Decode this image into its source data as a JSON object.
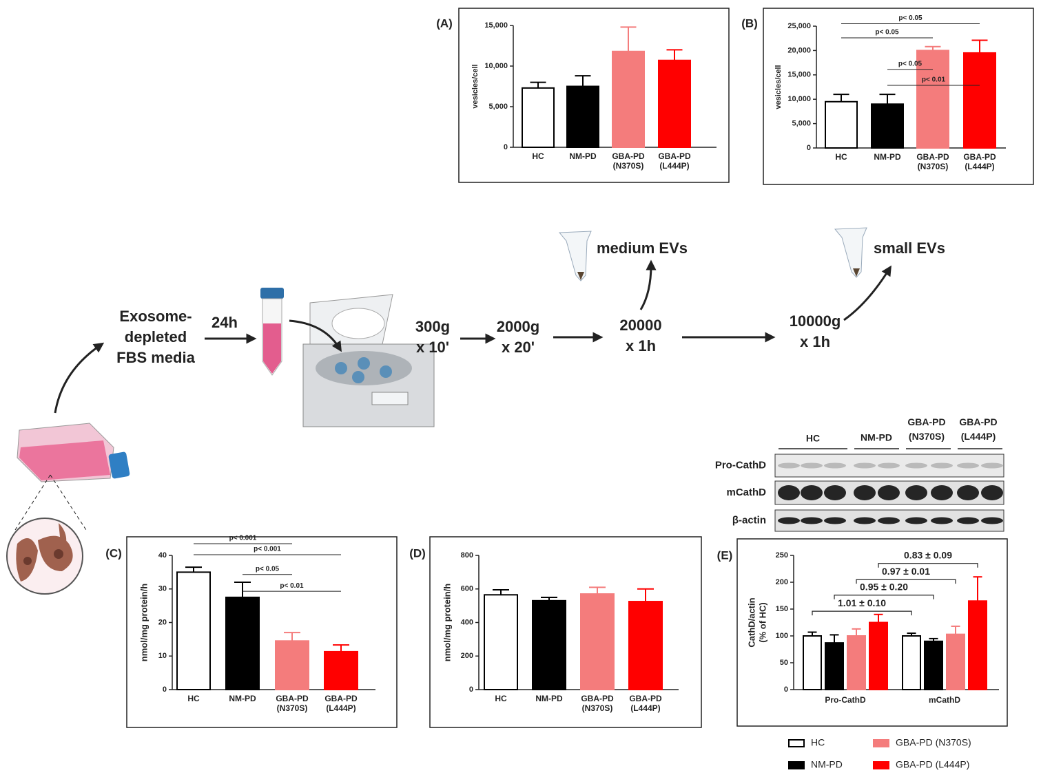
{
  "chart_data": [
    {
      "type": "bar",
      "title": "(A)",
      "ylabel": "vesicles/cell",
      "categories": [
        "HC",
        "NM-PD",
        "GBA-PD (N370S)",
        "GBA-PD (L444P)"
      ],
      "values": [
        7300,
        7500,
        11800,
        10700
      ],
      "errors": [
        700,
        1300,
        3000,
        1300
      ],
      "colors": [
        "#ffffff",
        "#000000",
        "#f47c7c",
        "#ff0000"
      ],
      "ylim": [
        0,
        15000
      ],
      "yticks": [
        0,
        {
          "value": 5000,
          "label": "5,000"
        },
        {
          "value": 10000,
          "label": "10,000"
        },
        {
          "value": 15000,
          "label": "15,000"
        }
      ]
    },
    {
      "type": "bar",
      "title": "(B)",
      "ylabel": "vesicles/cell",
      "categories": [
        "HC",
        "NM-PD",
        "GBA-PD (N370S)",
        "GBA-PD (L444P)"
      ],
      "values": [
        9500,
        9000,
        20000,
        19500
      ],
      "errors": [
        1500,
        2000,
        800,
        2600
      ],
      "colors": [
        "#ffffff",
        "#000000",
        "#f47c7c",
        "#ff0000"
      ],
      "ylim": [
        0,
        25000
      ],
      "yticks": [
        0,
        {
          "value": 5000,
          "label": "5,000"
        },
        {
          "value": 10000,
          "label": "10,000"
        },
        {
          "value": 15000,
          "label": "15,000"
        },
        {
          "value": 20000,
          "label": "20,000"
        },
        {
          "value": 25000,
          "label": "25,000"
        }
      ],
      "annotations": [
        {
          "from": "HC",
          "to": "GBA-PD (L444P)",
          "y": 25500,
          "label": "p< 0.05"
        },
        {
          "from": "HC",
          "to": "GBA-PD (N370S)",
          "y": 22600,
          "label": "p< 0.05"
        },
        {
          "from": "NM-PD",
          "to": "GBA-PD (N370S)",
          "y": 16100,
          "label": "p< 0.05"
        },
        {
          "from": "NM-PD",
          "to": "GBA-PD (L444P)",
          "y": 12850,
          "label": "p< 0.01"
        }
      ]
    },
    {
      "type": "bar",
      "title": "(C)",
      "ylabel": "nmol/mg protein/h",
      "categories": [
        "HC",
        "NM-PD",
        "GBA-PD (N370S)",
        "GBA-PD (L444P)"
      ],
      "values": [
        35,
        27.5,
        14.5,
        11.3
      ],
      "errors": [
        1.5,
        4.5,
        2.5,
        2
      ],
      "colors": [
        "#ffffff",
        "#000000",
        "#f47c7c",
        "#ff0000"
      ],
      "ylim": [
        0,
        40
      ],
      "yticks": [
        0,
        10,
        20,
        30,
        40
      ],
      "annotations": [
        {
          "from": "HC",
          "to": "GBA-PD (N370S)",
          "y": 43.5,
          "label": "p< 0.001"
        },
        {
          "from": "HC",
          "to": "GBA-PD (L444P)",
          "y": 40.2,
          "label": "p< 0.001"
        },
        {
          "from": "NM-PD",
          "to": "GBA-PD (N370S)",
          "y": 34.3,
          "label": "p< 0.05"
        },
        {
          "from": "NM-PD",
          "to": "GBA-PD (L444P)",
          "y": 29.3,
          "label": "p< 0.01"
        }
      ]
    },
    {
      "type": "bar",
      "title": "(D)",
      "ylabel": "nmol/mg protein/h",
      "categories": [
        "HC",
        "NM-PD",
        "GBA-PD (N370S)",
        "GBA-PD (L444P)"
      ],
      "values": [
        565,
        530,
        570,
        525
      ],
      "errors": [
        30,
        20,
        40,
        75
      ],
      "colors": [
        "#ffffff",
        "#000000",
        "#f47c7c",
        "#ff0000"
      ],
      "ylim": [
        0,
        800
      ],
      "yticks": [
        0,
        200,
        400,
        600,
        800
      ]
    },
    {
      "type": "bar",
      "title": "(E)",
      "ylabel": [
        "CathD/actin",
        "(% of HC)"
      ],
      "categories": [
        "Pro-CathD",
        "mCathD"
      ],
      "series": [
        {
          "name": "HC",
          "color": "#ffffff",
          "values": [
            100,
            100
          ],
          "errors": [
            7,
            5
          ]
        },
        {
          "name": "NM-PD",
          "color": "#000000",
          "values": [
            87,
            90
          ],
          "errors": [
            15,
            5
          ]
        },
        {
          "name": "GBA-PD (N370S)",
          "color": "#f47c7c",
          "values": [
            100,
            103
          ],
          "errors": [
            13,
            15
          ]
        },
        {
          "name": "GBA-PD (L444P)",
          "color": "#ff0000",
          "values": [
            125,
            165
          ],
          "errors": [
            15,
            45
          ]
        }
      ],
      "ylim": [
        0,
        250
      ],
      "yticks": [
        0,
        50,
        100,
        150,
        200,
        250
      ],
      "annotations": [
        {
          "series": "HC",
          "y": 146,
          "label": "1.01 ± 0.10"
        },
        {
          "series": "NM-PD",
          "y": 176,
          "label": "0.95 ± 0.20"
        },
        {
          "series": "GBA-PD (N370S)",
          "y": 205,
          "label": "0.97 ± 0.01"
        },
        {
          "series": "GBA-PD (L444P)",
          "y": 235,
          "label": "0.83 ± 0.09"
        }
      ],
      "legend": "bottom"
    }
  ],
  "workflow": {
    "steps": [
      [
        "Exosome-",
        "depleted",
        "FBS media"
      ],
      [
        "24h"
      ],
      [
        "300g",
        "x 10'"
      ],
      [
        "2000g",
        "x 20'"
      ],
      [
        "20000",
        "x 1h"
      ],
      [
        "10000g",
        "x 1h"
      ]
    ],
    "products": [
      "medium EVs",
      "small EVs"
    ]
  },
  "blot": {
    "groups": [
      "HC",
      "NM-PD",
      "GBA-PD (N370S)",
      "GBA-PD (L444P)"
    ],
    "rows": [
      "Pro-CathD",
      "mCathD",
      "β-actin"
    ]
  }
}
